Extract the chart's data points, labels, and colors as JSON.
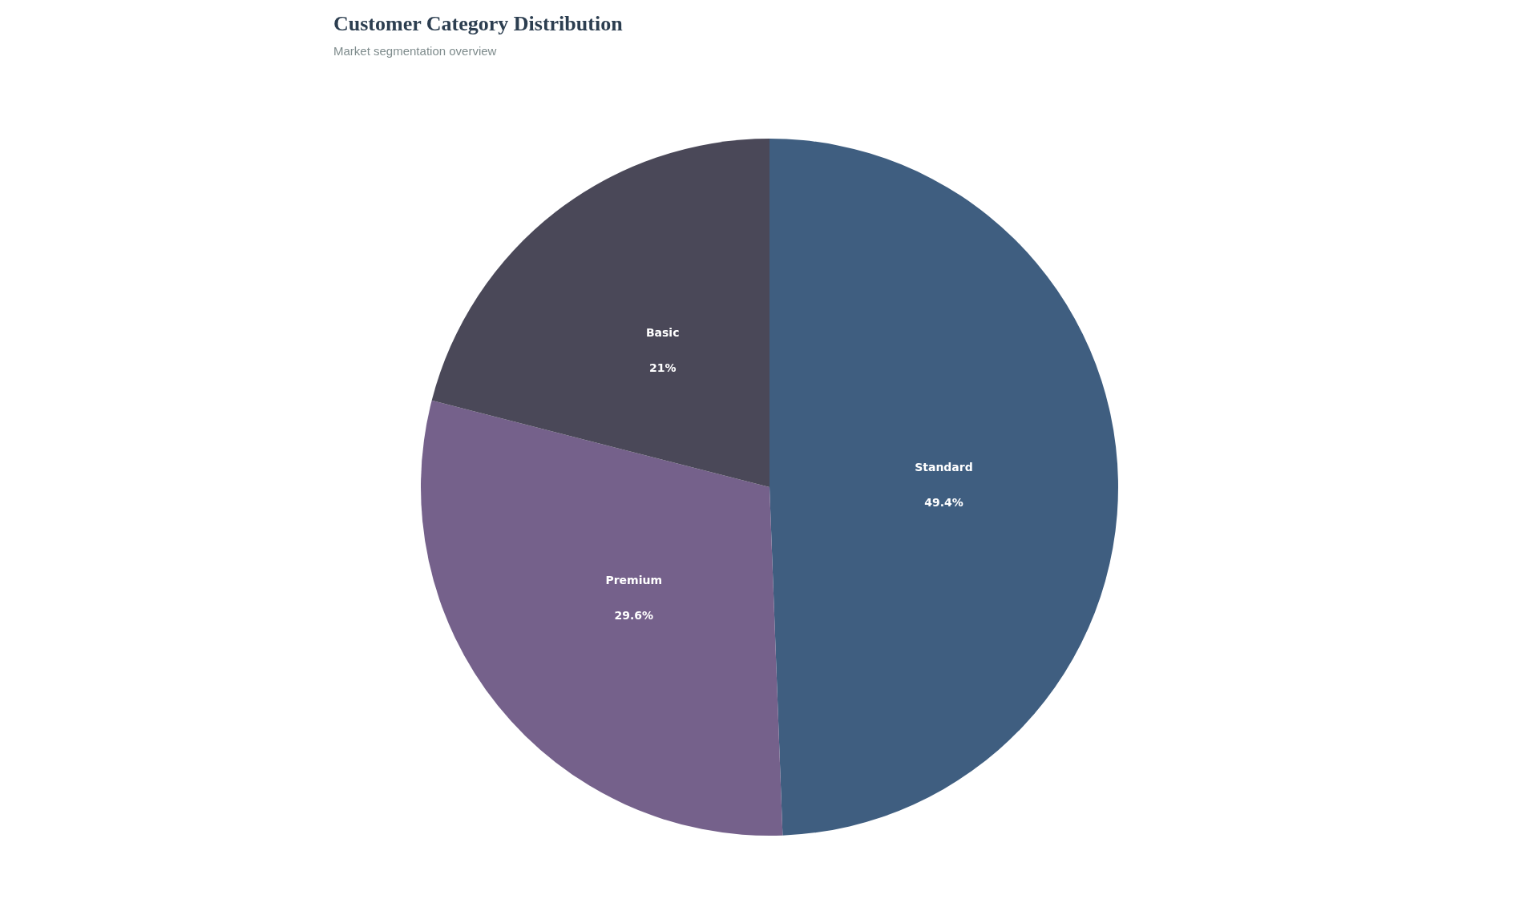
{
  "chart_data": {
    "type": "pie",
    "title": "Customer Category Distribution",
    "subtitle": "Market segmentation overview",
    "categories": [
      "Standard",
      "Premium",
      "Basic"
    ],
    "values": [
      49.4,
      29.6,
      21
    ],
    "colors": [
      "#3f5e80",
      "#75618b",
      "#4a4858"
    ],
    "value_labels": [
      "49.4%",
      "29.6%",
      "21%"
    ],
    "legend": false
  }
}
